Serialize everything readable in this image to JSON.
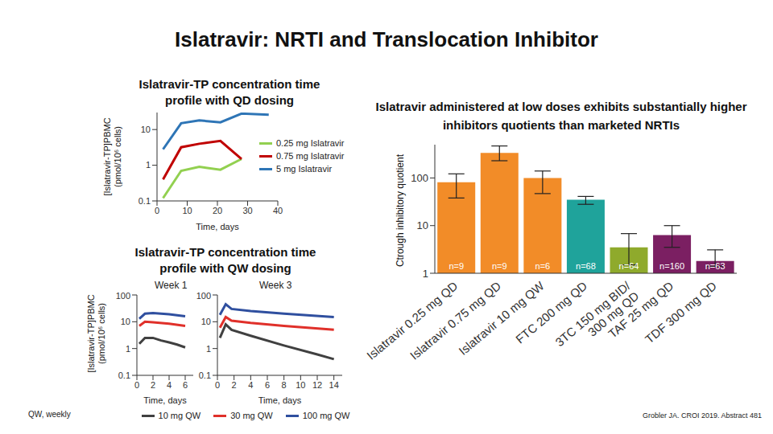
{
  "title": "Islatravir: NRTI and Translocation Inhibitor",
  "footnote": "QW, weekly",
  "citation": "Grobler JA. CROI 2019. Abstract 481",
  "chart_data": [
    {
      "type": "line",
      "title": "Islatravir-TP concentration time profile with QD dosing",
      "y_label": "[Islatravir-TP]PBMC (pmol/10⁶ cells)",
      "x_label": "Time, days",
      "log": "y",
      "xlim": [
        0,
        40
      ],
      "xticks": [
        0,
        10,
        20,
        30,
        40
      ],
      "ylim": [
        0.1,
        30
      ],
      "yticks": [
        0.1,
        1,
        10
      ],
      "legend": "right",
      "series": [
        {
          "name": "0.25 mg Islatravir",
          "color": "#92d050",
          "x": [
            2,
            8,
            14,
            21,
            28
          ],
          "values": [
            0.12,
            0.7,
            0.9,
            0.75,
            1.5
          ]
        },
        {
          "name": "0.75 mg Islatravir",
          "color": "#c00000",
          "x": [
            2,
            8,
            14,
            21,
            28
          ],
          "values": [
            0.4,
            3.2,
            4,
            4.8,
            1.5
          ]
        },
        {
          "name": "5 mg Islatravir",
          "color": "#2e75b6",
          "x": [
            2,
            8,
            14,
            21,
            28,
            37
          ],
          "values": [
            2.8,
            15,
            18,
            16,
            28,
            26
          ]
        }
      ]
    },
    {
      "type": "line",
      "title": "Islatravir-TP concentration time profile with QW dosing",
      "y_label": "[Islatravir-TP]PBMC (pmol/10⁶ cells)",
      "log": "y",
      "ylim": [
        0.1,
        100
      ],
      "yticks": [
        0.1,
        1,
        10,
        100
      ],
      "legend": "bottom",
      "series": [
        {
          "name": "10 mg QW",
          "color": "#404040"
        },
        {
          "name": "30 mg QW",
          "color": "#e0302a"
        },
        {
          "name": "100 mg QW",
          "color": "#2f4f9f"
        }
      ],
      "panels": [
        {
          "title": "Week 1",
          "x_label": "Time, days",
          "xlim": [
            0,
            7
          ],
          "xticks": [
            0,
            2,
            4,
            6
          ],
          "series": [
            {
              "x": [
                0.3,
                1,
                2,
                3,
                4,
                5,
                6
              ],
              "values": [
                1.5,
                2.5,
                2.5,
                2,
                1.7,
                1.4,
                1.1
              ]
            },
            {
              "x": [
                0.3,
                1,
                2,
                4,
                6
              ],
              "values": [
                7,
                10,
                9.5,
                8.5,
                7
              ]
            },
            {
              "x": [
                0.3,
                1,
                2,
                4,
                6
              ],
              "values": [
                13,
                20,
                21,
                19,
                16
              ]
            }
          ]
        },
        {
          "title": "Week 3",
          "x_label": "Time, days",
          "xlim": [
            0,
            15
          ],
          "xticks": [
            0,
            2,
            4,
            6,
            8,
            10,
            12,
            14
          ],
          "series": [
            {
              "x": [
                0.3,
                1,
                1.7,
                4,
                8,
                12,
                14
              ],
              "values": [
                2.5,
                8,
                5,
                3,
                1.3,
                0.6,
                0.4
              ]
            },
            {
              "x": [
                0.3,
                1,
                1.7,
                4,
                8,
                14
              ],
              "values": [
                6,
                15,
                11,
                9,
                7,
                5
              ]
            },
            {
              "x": [
                0.3,
                1,
                1.7,
                4,
                8,
                14
              ],
              "values": [
                18,
                45,
                30,
                25,
                20,
                15
              ]
            }
          ]
        }
      ]
    },
    {
      "type": "bar",
      "title": "Islatravir administered at low doses exhibits substantially higher inhibitors quotients than marketed NRTIs",
      "y_label": "Ctrough inhibitory quotient",
      "log": "y",
      "ylim": [
        1,
        500
      ],
      "yticks": [
        1,
        10,
        100
      ],
      "categories": [
        "Islatravir 0.25 mg QD",
        "Islatravir 0.75 mg QD",
        "Islatravir 10 mg QW",
        "FTC 200 mg QD",
        "3TC 150 mg BID/\n300 mg QD",
        "TAF 25 mg QD",
        "TDF 300 mg QD"
      ],
      "values": [
        81,
        336,
        100,
        35,
        3.5,
        6.3,
        1.8
      ],
      "error_low": [
        38,
        230,
        47,
        28,
        1.5,
        3.5,
        1.4
      ],
      "error_high": [
        122,
        470,
        140,
        41,
        6.8,
        10,
        3.1
      ],
      "colors": [
        "#f28c28",
        "#f28c28",
        "#f28c28",
        "#1fa39b",
        "#8faa2c",
        "#7b1f62",
        "#7b1f62"
      ],
      "n_labels": [
        "n=9",
        "n=9",
        "n=6",
        "n=68",
        "n=64",
        "n=160",
        "n=63"
      ]
    }
  ]
}
